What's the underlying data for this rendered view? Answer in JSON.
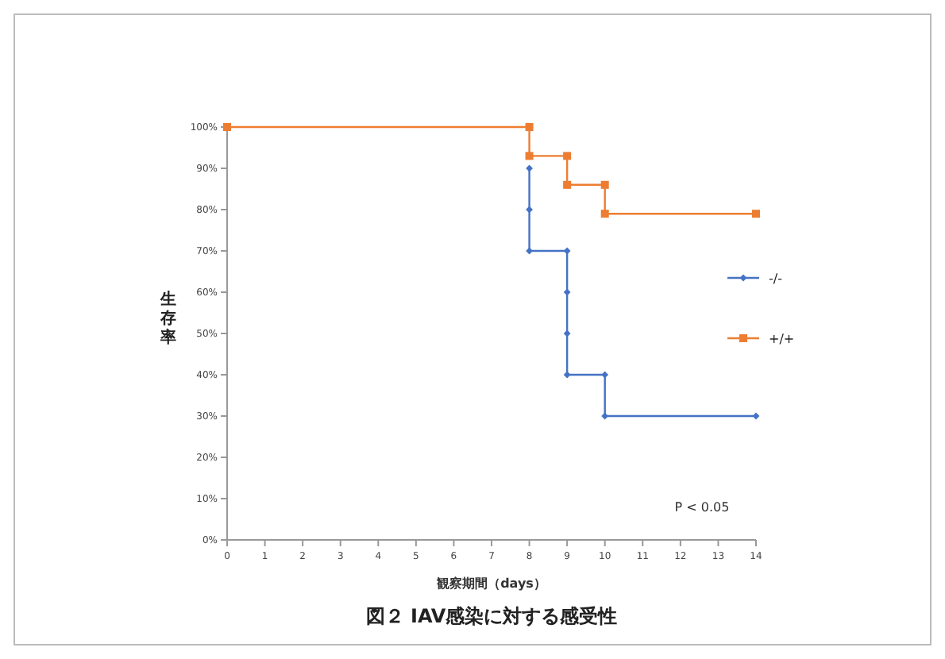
{
  "chart_data": {
    "type": "line",
    "title": "図２ IAV感染に対する感受性",
    "xlabel": "観察期間（days）",
    "ylabel": "生存率",
    "series": [
      {
        "name": "-/-",
        "color": "#4472c4",
        "marker": "diamond",
        "x": [
          8,
          8,
          8,
          9,
          9,
          9,
          9,
          10,
          10,
          14
        ],
        "values": [
          90,
          80,
          70,
          70,
          60,
          50,
          40,
          40,
          30,
          30
        ]
      },
      {
        "name": "+/+",
        "color": "#ed7d31",
        "marker": "square",
        "x": [
          0,
          8,
          8,
          9,
          9,
          10,
          10,
          14
        ],
        "values": [
          100,
          100,
          93,
          93,
          86,
          86,
          79,
          79
        ]
      }
    ],
    "xlim": [
      0,
      14
    ],
    "xticks": [
      0,
      1,
      2,
      3,
      4,
      5,
      6,
      7,
      8,
      9,
      10,
      11,
      12,
      13,
      14
    ],
    "ylim": [
      0,
      100
    ],
    "yticks": [
      {
        "value": 0,
        "label": "0%"
      },
      {
        "value": 10,
        "label": "10%"
      },
      {
        "value": 20,
        "label": "20%"
      },
      {
        "value": 30,
        "label": "30%"
      },
      {
        "value": 40,
        "label": "40%"
      },
      {
        "value": 50,
        "label": "50%"
      },
      {
        "value": 60,
        "label": "60%"
      },
      {
        "value": 70,
        "label": "70%"
      },
      {
        "value": 80,
        "label": "80%"
      },
      {
        "value": 90,
        "label": "90%"
      },
      {
        "value": 100,
        "label": "100%"
      }
    ],
    "grid": false,
    "legend": "right",
    "line_style": "solid",
    "annotations": [
      "P < 0.05"
    ]
  }
}
